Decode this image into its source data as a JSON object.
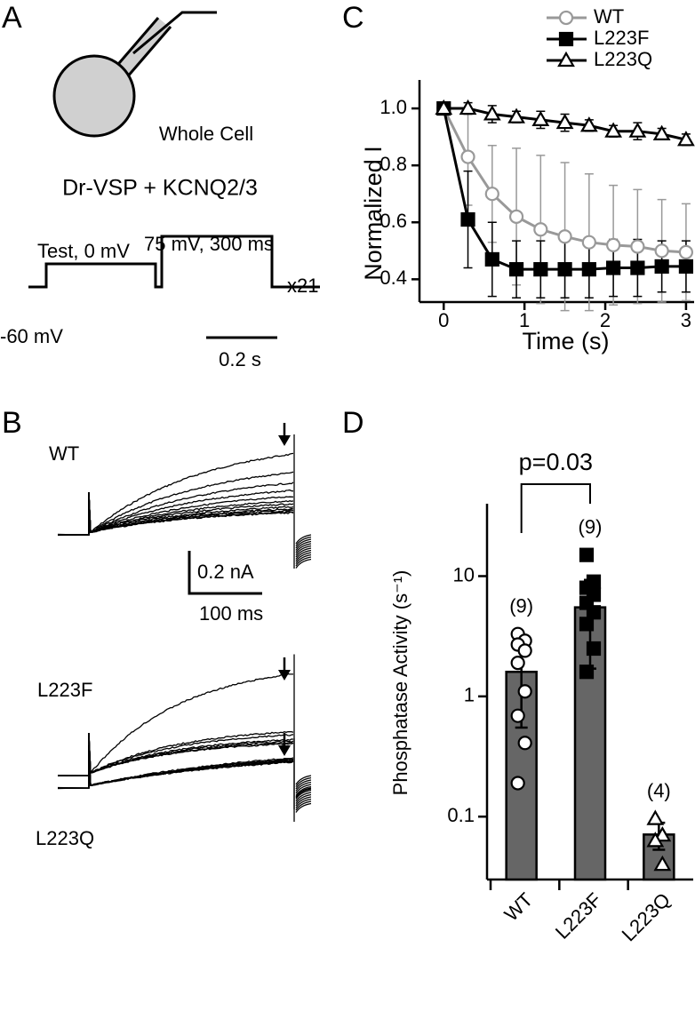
{
  "panels": [
    "A",
    "B",
    "C",
    "D"
  ],
  "diagram": {
    "cell": "Whole Cell",
    "construct": "Dr-VSP + KCNQ2/3",
    "test": "Test, 0 mV",
    "pulse": "75 mV, 300 ms",
    "holding": "-60 mV",
    "repeat": "x21",
    "time_scale": "0.2 s"
  },
  "traces": {
    "groups": [
      "WT",
      "L223F",
      "L223Q"
    ],
    "current_scale": "0.2 nA",
    "time_scale": "100 ms"
  },
  "chart_data": [
    {
      "type": "line",
      "xlabel": "Time (s)",
      "ylabel": "Normalized I",
      "x": [
        0,
        0.3,
        0.6,
        0.9,
        1.2,
        1.5,
        1.8,
        2.1,
        2.4,
        2.7,
        3.0
      ],
      "xlim": [
        -0.3,
        3.1
      ],
      "ylim": [
        0.32,
        1.1
      ],
      "xticks": [
        0,
        1,
        2,
        3
      ],
      "yticks": [
        0.4,
        0.6,
        0.8,
        {
          "value": 1,
          "label": "1.0"
        }
      ],
      "legend": "top-right",
      "series": [
        {
          "name": "WT",
          "color": "#999999",
          "marker": "open-circle",
          "values": [
            1.0,
            0.83,
            0.7,
            0.62,
            0.575,
            0.55,
            0.53,
            0.52,
            0.515,
            0.5,
            0.495
          ],
          "errors": [
            0,
            0.17,
            0.17,
            0.24,
            0.26,
            0.26,
            0.24,
            0.21,
            0.2,
            0.18,
            0.17
          ]
        },
        {
          "name": "L223F",
          "color": "#000000",
          "marker": "filled-square",
          "values": [
            1.0,
            0.61,
            0.47,
            0.435,
            0.435,
            0.435,
            0.435,
            0.44,
            0.44,
            0.445,
            0.445
          ],
          "errors": [
            0,
            0.17,
            0.13,
            0.1,
            0.1,
            0.1,
            0.1,
            0.1,
            0.1,
            0.09,
            0.09
          ]
        },
        {
          "name": "L223Q",
          "color": "#000000",
          "marker": "open-triangle",
          "values": [
            1.0,
            1.0,
            0.98,
            0.97,
            0.96,
            0.95,
            0.94,
            0.92,
            0.92,
            0.91,
            0.89
          ],
          "errors": [
            0,
            0.02,
            0.03,
            0.02,
            0.03,
            0.03,
            0.02,
            0.02,
            0.03,
            0.02,
            0.02
          ]
        }
      ]
    },
    {
      "type": "bar",
      "ylabel": "Phosphatase Activity (s⁻¹)",
      "categories": [
        "WT",
        "L223F",
        "L223Q"
      ],
      "values": [
        1.6,
        5.5,
        0.071
      ],
      "errors": [
        1.05,
        3.8,
        0.018
      ],
      "color": "#666666",
      "log_scale": true,
      "ylim": [
        0.03,
        40
      ],
      "yticks": [
        0.1,
        1,
        10
      ],
      "n_labels": [
        "(9)",
        "(9)",
        "(4)"
      ],
      "annotation": "p=0.03",
      "markers": [
        "open-circle",
        "filled-square",
        "open-triangle"
      ],
      "points": [
        [
          3.3,
          2.9,
          2.7,
          2.4,
          1.9,
          1.1,
          0.69,
          0.41,
          0.19
        ],
        [
          15,
          9,
          8,
          7,
          6,
          5,
          4,
          2.5,
          1.6
        ],
        [
          0.096,
          0.07,
          0.063,
          0.04
        ]
      ]
    }
  ]
}
